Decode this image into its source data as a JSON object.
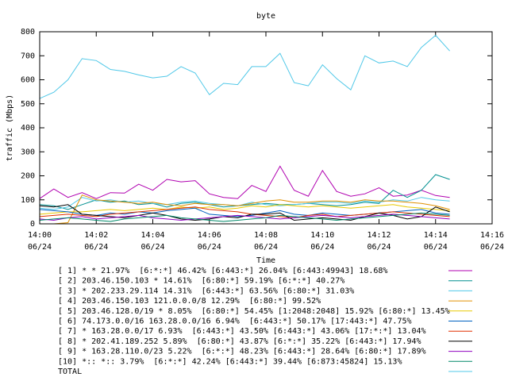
{
  "chart_data": {
    "type": "line",
    "title": "byte",
    "x_label": "Time",
    "y_label": "traffic (Mbps)",
    "x": [
      "14:00:00",
      "14:00:30",
      "14:01:00",
      "14:01:30",
      "14:02:00",
      "14:02:30",
      "14:03:00",
      "14:03:30",
      "14:04:00",
      "14:04:30",
      "14:05:00",
      "14:05:30",
      "14:06:00",
      "14:06:30",
      "14:07:00",
      "14:07:30",
      "14:08:00",
      "14:08:30",
      "14:09:00",
      "14:09:30",
      "14:10:00",
      "14:10:30",
      "14:11:00",
      "14:11:30",
      "14:12:00",
      "14:12:30",
      "14:13:00",
      "14:13:30",
      "14:14:00",
      "14:14:30"
    ],
    "xlim": [
      "14:00",
      "14:16"
    ],
    "xticks": [
      {
        "value": "14:00",
        "label": [
          "14:00",
          "06/24"
        ]
      },
      {
        "value": "14:02",
        "label": [
          "14:02",
          "06/24"
        ]
      },
      {
        "value": "14:04",
        "label": [
          "14:04",
          "06/24"
        ]
      },
      {
        "value": "14:06",
        "label": [
          "14:06",
          "06/24"
        ]
      },
      {
        "value": "14:08",
        "label": [
          "14:08",
          "06/24"
        ]
      },
      {
        "value": "14:10",
        "label": [
          "14:10",
          "06/24"
        ]
      },
      {
        "value": "14:12",
        "label": [
          "14:12",
          "06/24"
        ]
      },
      {
        "value": "14:14",
        "label": [
          "14:14",
          "06/24"
        ]
      },
      {
        "value": "14:16",
        "label": [
          "14:16",
          "06/24"
        ]
      }
    ],
    "ylim": [
      0,
      800
    ],
    "yticks": [
      0,
      100,
      200,
      300,
      400,
      500,
      600,
      700,
      800
    ],
    "series": [
      {
        "name": "[ 1] * * 21.97%  [6:*:*] 46.42% [6:443:*] 26.04% [6:443:49943] 18.68%",
        "color": "#b000b0",
        "values": [
          105,
          145,
          110,
          130,
          105,
          130,
          128,
          165,
          140,
          185,
          175,
          180,
          125,
          110,
          105,
          160,
          135,
          240,
          140,
          115,
          222,
          135,
          115,
          125,
          150,
          115,
          120,
          140,
          118,
          110
        ]
      },
      {
        "name": "[ 2] 203.46.150.103 * 14.61%  [6:80:*] 59.19% [6:*:*] 40.27%",
        "color": "#009090",
        "values": [
          80,
          75,
          60,
          80,
          100,
          90,
          95,
          80,
          85,
          70,
          85,
          90,
          80,
          70,
          75,
          80,
          85,
          80,
          80,
          85,
          80,
          75,
          80,
          90,
          85,
          140,
          110,
          140,
          205,
          185
        ]
      },
      {
        "name": "[ 3] * 202.233.29.114 14.31%  [6:443:*] 63.56% [6:80:*] 31.03%",
        "color": "#50c8e8",
        "values": [
          65,
          60,
          70,
          110,
          95,
          100,
          90,
          95,
          85,
          80,
          90,
          95,
          85,
          80,
          75,
          90,
          80,
          75,
          80,
          85,
          90,
          90,
          85,
          95,
          90,
          100,
          95,
          110,
          100,
          95
        ]
      },
      {
        "name": "[ 4] 203.46.150.103 121.0.0.0/8 12.29%  [6:80:*] 99.52%",
        "color": "#e09000",
        "values": [
          0,
          0,
          5,
          120,
          100,
          95,
          90,
          85,
          90,
          80,
          75,
          85,
          80,
          80,
          75,
          85,
          95,
          100,
          90,
          90,
          95,
          95,
          90,
          100,
          95,
          95,
          90,
          85,
          75,
          60
        ]
      },
      {
        "name": "[ 5] 203.46.128.0/19 * 8.05%  [6:80:*] 54.45% [1:2048:2048] 15.92% [6:80:*] 13.45%",
        "color": "#e8c800",
        "values": [
          40,
          45,
          50,
          50,
          55,
          60,
          55,
          60,
          65,
          60,
          70,
          65,
          70,
          60,
          65,
          75,
          70,
          80,
          75,
          70,
          75,
          70,
          65,
          70,
          75,
          80,
          70,
          65,
          60,
          55
        ]
      },
      {
        "name": "[ 6] 74.173.0.0/16 163.28.0.0/16 6.94%  [6:443:*] 50.17% [17:443:*] 47.75%",
        "color": "#0060c0",
        "values": [
          60,
          55,
          50,
          40,
          35,
          45,
          40,
          50,
          45,
          55,
          60,
          65,
          40,
          35,
          30,
          35,
          45,
          55,
          40,
          35,
          45,
          40,
          35,
          40,
          45,
          50,
          55,
          60,
          45,
          40
        ]
      },
      {
        "name": "[ 7] * 163.28.0.0/17 6.93%  [6:443:*] 43.50% [6:443:*] 43.06% [17:*:*] 13.04%",
        "color": "#e03000",
        "values": [
          30,
          35,
          40,
          35,
          30,
          40,
          45,
          50,
          55,
          60,
          65,
          70,
          60,
          55,
          50,
          40,
          35,
          30,
          25,
          35,
          40,
          30,
          35,
          40,
          45,
          50,
          45,
          40,
          35,
          30
        ]
      },
      {
        "name": "[ 8] * 202.41.189.252 5.89%  [6:80:*] 43.87% [6:*:*] 35.22% [6:443:*] 17.94%",
        "color": "#000000",
        "values": [
          75,
          70,
          80,
          40,
          35,
          30,
          25,
          35,
          45,
          35,
          20,
          15,
          20,
          30,
          25,
          40,
          40,
          45,
          15,
          20,
          25,
          20,
          15,
          30,
          45,
          35,
          20,
          30,
          70,
          50
        ]
      },
      {
        "name": "[ 9] * 163.28.110.0/23 5.22%  [6:*:*] 48.23% [6:443:*] 28.64% [6:80:*] 17.89%",
        "color": "#9000c0",
        "values": [
          20,
          15,
          25,
          30,
          20,
          25,
          30,
          35,
          25,
          20,
          15,
          20,
          25,
          30,
          35,
          30,
          25,
          20,
          25,
          30,
          35,
          30,
          25,
          30,
          35,
          40,
          35,
          30,
          25,
          20
        ]
      },
      {
        "name": "[10] *:: *:: 3.79%  [6:*:*] 42.24% [6:443:*] 39.44% [6:873:45824] 15.13%",
        "color": "#008868",
        "values": [
          15,
          20,
          25,
          20,
          15,
          10,
          20,
          25,
          30,
          35,
          25,
          20,
          15,
          10,
          15,
          20,
          25,
          35,
          30,
          25,
          20,
          15,
          20,
          25,
          30,
          35,
          40,
          45,
          40,
          35
        ]
      },
      {
        "name": "TOTAL",
        "color": "#50c8e8",
        "values": [
          522,
          548,
          600,
          688,
          680,
          643,
          635,
          620,
          608,
          615,
          655,
          628,
          538,
          585,
          580,
          655,
          655,
          710,
          588,
          575,
          662,
          605,
          558,
          700,
          670,
          678,
          655,
          735,
          785,
          720
        ]
      }
    ]
  }
}
